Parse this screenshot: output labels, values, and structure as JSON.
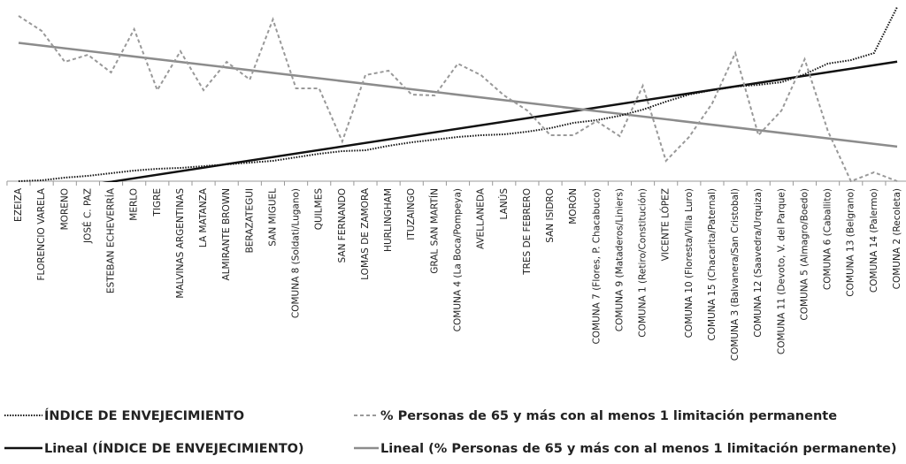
{
  "chart_data": {
    "type": "line",
    "categories": [
      "EZEIZA",
      "FLORENCIO VARELA",
      "MORENO",
      "JOSÉ C. PAZ",
      "ESTEBAN ECHEVERRÍA",
      "MERLO",
      "TIGRE",
      "MALVINAS ARGENTINAS",
      "LA MATANZA",
      "ALMIRANTE BROWN",
      "BERAZATEGUI",
      "SAN MIGUEL",
      "COMUNA 8 (Soldati/Lugano)",
      "QUILMES",
      "SAN FERNANDO",
      "LOMAS DE ZAMORA",
      "HURLINGHAM",
      "ITUZAINGO",
      "GRAL SAN MARTÍN",
      "COMUNA 4 (La Boca/Pompeya)",
      "AVELLANEDA",
      "LANÚS",
      "TRES DE FEBRERO",
      "SAN ISIDRO",
      "MORÓN",
      "COMUNA 7 (Flores, P. Chacabuco)",
      "COMUNA 9 (Mataderos/Liniers)",
      "COMUNA 1 (Retiro/Constitución)",
      "VICENTE LÓPEZ",
      "COMUNA 10 (Floresta/Villa Luro)",
      "COMUNA 15 (Chacarita/Paternal)",
      "COMUNA 3 (Balvanera/San Cristobal)",
      "COMUNA 12 (Saavedra/Urquiza)",
      "COMUNA 11 (Devoto, V. del Parque)",
      "COMUNA 5 (Almagro/Boedo)",
      "COMUNA 6 (Caballito)",
      "COMUNA 13 (Belgrano)",
      "COMUNA 14 (Palermo)",
      "COMUNA 2 (Recoleta)"
    ],
    "series": [
      {
        "name": "ÍNDICE DE ENVEJECIMIENTO",
        "color": "#111111",
        "dash": "1.5 1.5",
        "values": [
          0,
          0.5,
          2,
          3,
          4.5,
          6,
          7,
          7.5,
          8.5,
          9.5,
          10.5,
          11.5,
          13.5,
          15.5,
          17,
          17.5,
          20,
          22,
          23.5,
          25,
          26,
          26.5,
          28,
          30,
          33,
          34.5,
          37,
          40.5,
          45,
          49,
          51.5,
          53.5,
          54.5,
          56,
          60.5,
          66.5,
          68.5,
          72.5,
          98.5
        ]
      },
      {
        "name": "% Personas de 65 y más con al menos 1 limitación permanente",
        "color": "#999999",
        "dash": "4 3",
        "values": [
          93.5,
          85,
          67.5,
          71.5,
          61.5,
          86,
          51.5,
          73.5,
          51.5,
          67.5,
          57.5,
          91.5,
          52.5,
          52.5,
          22.5,
          60,
          62.5,
          49,
          48.5,
          66.5,
          60,
          48.5,
          40,
          26,
          26,
          34,
          25.5,
          54,
          11.5,
          25,
          44,
          72.5,
          26,
          40,
          69,
          28.5,
          0,
          5,
          0
        ]
      }
    ],
    "trendlines": [
      {
        "name": "Lineal (ÍNDICE DE ENVEJECIMIENTO)",
        "series": 0,
        "color": "#111111"
      },
      {
        "name": "Lineal (% Personas de 65 y más con al menos 1 limitación permanente)",
        "series": 1,
        "color": "#8c8c8c"
      }
    ],
    "ylim": [
      0,
      100
    ]
  }
}
